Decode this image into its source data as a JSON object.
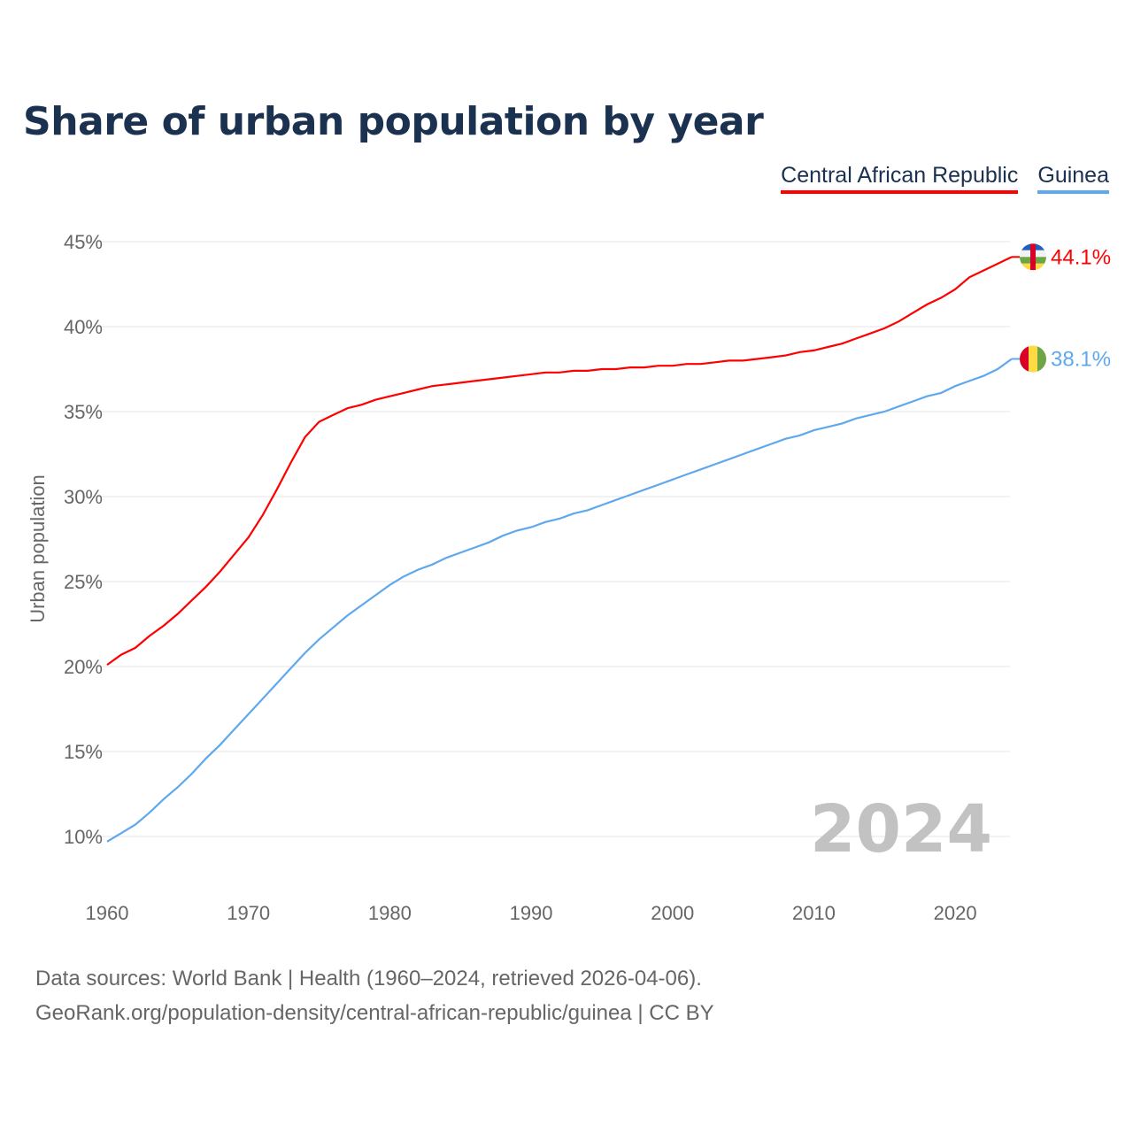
{
  "title": "Share of urban population by year",
  "footer": {
    "line1": "Data sources: World Bank | Health (1960–2024, retrieved 2026-04-06).",
    "line2": "GeoRank.org/population-density/central-african-republic/guinea | CC BY"
  },
  "chart_data": {
    "type": "line",
    "title": "Share of urban population by year",
    "xlabel": "",
    "ylabel": "Urban population",
    "xlim": [
      1960,
      2024
    ],
    "ylim": [
      10,
      45
    ],
    "x_ticks": [
      "1960",
      "1970",
      "1980",
      "1990",
      "2000",
      "2010",
      "2020"
    ],
    "y_ticks": [
      "10%",
      "15%",
      "20%",
      "25%",
      "30%",
      "35%",
      "40%",
      "45%"
    ],
    "grid": true,
    "legend_position": "top-right",
    "year_watermark": "2024",
    "x": [
      1960,
      1961,
      1962,
      1963,
      1964,
      1965,
      1966,
      1967,
      1968,
      1969,
      1970,
      1971,
      1972,
      1973,
      1974,
      1975,
      1976,
      1977,
      1978,
      1979,
      1980,
      1981,
      1982,
      1983,
      1984,
      1985,
      1986,
      1987,
      1988,
      1989,
      1990,
      1991,
      1992,
      1993,
      1994,
      1995,
      1996,
      1997,
      1998,
      1999,
      2000,
      2001,
      2002,
      2003,
      2004,
      2005,
      2006,
      2007,
      2008,
      2009,
      2010,
      2011,
      2012,
      2013,
      2014,
      2015,
      2016,
      2017,
      2018,
      2019,
      2020,
      2021,
      2022,
      2023,
      2024
    ],
    "series": [
      {
        "name": "Central African Republic",
        "color": "#ff0000",
        "end_label": "44.1%",
        "values": [
          20.1,
          20.7,
          21.1,
          21.8,
          22.4,
          23.1,
          23.9,
          24.7,
          25.6,
          26.6,
          27.6,
          28.9,
          30.4,
          32.0,
          33.5,
          34.4,
          34.8,
          35.2,
          35.4,
          35.7,
          35.9,
          36.1,
          36.3,
          36.5,
          36.6,
          36.7,
          36.8,
          36.9,
          37.0,
          37.1,
          37.2,
          37.3,
          37.3,
          37.4,
          37.4,
          37.5,
          37.5,
          37.6,
          37.6,
          37.7,
          37.7,
          37.8,
          37.8,
          37.9,
          38.0,
          38.0,
          38.1,
          38.2,
          38.3,
          38.5,
          38.6,
          38.8,
          39.0,
          39.3,
          39.6,
          39.9,
          40.3,
          40.8,
          41.3,
          41.7,
          42.2,
          42.9,
          43.3,
          43.7,
          44.1
        ]
      },
      {
        "name": "Guinea",
        "color": "#5fa8ee",
        "end_label": "38.1%",
        "values": [
          9.7,
          10.2,
          10.7,
          11.4,
          12.2,
          12.9,
          13.7,
          14.6,
          15.4,
          16.3,
          17.2,
          18.1,
          19.0,
          19.9,
          20.8,
          21.6,
          22.3,
          23.0,
          23.6,
          24.2,
          24.8,
          25.3,
          25.7,
          26.0,
          26.4,
          26.7,
          27.0,
          27.3,
          27.7,
          28.0,
          28.2,
          28.5,
          28.7,
          29.0,
          29.2,
          29.5,
          29.8,
          30.1,
          30.4,
          30.7,
          31.0,
          31.3,
          31.6,
          31.9,
          32.2,
          32.5,
          32.8,
          33.1,
          33.4,
          33.6,
          33.9,
          34.1,
          34.3,
          34.6,
          34.8,
          35.0,
          35.3,
          35.6,
          35.9,
          36.1,
          36.5,
          36.8,
          37.1,
          37.5,
          38.1
        ]
      }
    ]
  }
}
